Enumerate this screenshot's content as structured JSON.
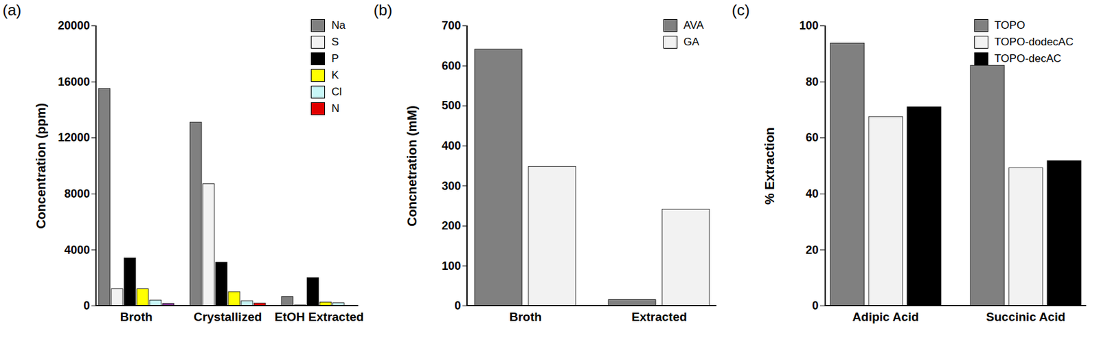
{
  "chart_data": [
    {
      "type": "bar",
      "title": "(a)",
      "y_label": "Concentration (ppm)",
      "categories": [
        "Broth",
        "Crystallized",
        "EtOH Extracted"
      ],
      "series": [
        {
          "name": "Na",
          "color": "#808080",
          "values": [
            15500,
            13100,
            650
          ]
        },
        {
          "name": "S",
          "color": "#f2f2f2",
          "values": [
            1200,
            8700,
            50
          ]
        },
        {
          "name": "P",
          "color": "#000000",
          "values": [
            3400,
            3100,
            2000
          ]
        },
        {
          "name": "K",
          "color": "#ffff00",
          "values": [
            1200,
            1000,
            250
          ]
        },
        {
          "name": "Cl",
          "color": "#c8f7f7",
          "values": [
            400,
            350,
            200
          ]
        },
        {
          "name": "N",
          "color": "#e00000",
          "colors": [
            "#7b2d8e",
            "#e00000",
            "#e00000"
          ],
          "values": [
            150,
            180,
            30
          ]
        }
      ],
      "ylim": [
        0,
        20000
      ],
      "yticks": [
        0,
        4000,
        8000,
        12000,
        16000,
        20000
      ],
      "grid": false,
      "legend": "top-right"
    },
    {
      "type": "bar",
      "title": "(b)",
      "y_label": "Concnetration (mM)",
      "categories": [
        "Broth",
        "Extracted"
      ],
      "series": [
        {
          "name": "AVA",
          "color": "#808080",
          "values": [
            641,
            15
          ]
        },
        {
          "name": "GA",
          "color": "#f2f2f2",
          "values": [
            348,
            241
          ]
        }
      ],
      "ylim": [
        0,
        700
      ],
      "yticks": [
        0,
        100,
        200,
        300,
        400,
        500,
        600,
        700
      ],
      "grid": false,
      "legend": "top-right"
    },
    {
      "type": "bar",
      "title": "(c)",
      "y_label": "% Extraction",
      "categories": [
        "Adipic Acid",
        "Succinic Acid"
      ],
      "series": [
        {
          "name": "TOPO",
          "color": "#808080",
          "values": [
            93.7,
            85.8
          ]
        },
        {
          "name": "TOPO-dodecAC",
          "color": "#f2f2f2",
          "values": [
            67.5,
            49.2
          ]
        },
        {
          "name": "TOPO-decAC",
          "color": "#000000",
          "values": [
            71,
            51.8
          ]
        }
      ],
      "ylim": [
        0,
        100
      ],
      "yticks": [
        0,
        20,
        40,
        60,
        80,
        100
      ],
      "grid": false,
      "legend": "top-right"
    }
  ]
}
